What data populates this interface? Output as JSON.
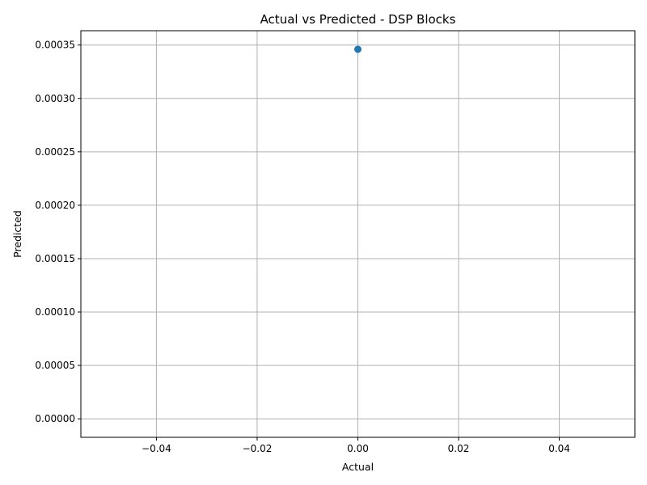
{
  "chart_data": {
    "type": "scatter",
    "title": "Actual vs Predicted - DSP Blocks",
    "xlabel": "Actual",
    "ylabel": "Predicted",
    "xlim": [
      -0.055,
      0.055
    ],
    "ylim": [
      -1.73e-05,
      0.0003634
    ],
    "x_ticks": [
      -0.04,
      -0.02,
      0.0,
      0.02,
      0.04
    ],
    "x_tick_labels": [
      "−0.04",
      "−0.02",
      "0.00",
      "0.02",
      "0.04"
    ],
    "y_ticks": [
      0,
      5e-05,
      0.0001,
      0.00015,
      0.0002,
      0.00025,
      0.0003,
      0.00035
    ],
    "y_tick_labels": [
      "0.00000",
      "0.00005",
      "0.00010",
      "0.00015",
      "0.00020",
      "0.00025",
      "0.00030",
      "0.00035"
    ],
    "grid": true,
    "points": [
      {
        "x": 0.0,
        "y": 0.000346
      }
    ],
    "point_color": "#1f77b4"
  }
}
